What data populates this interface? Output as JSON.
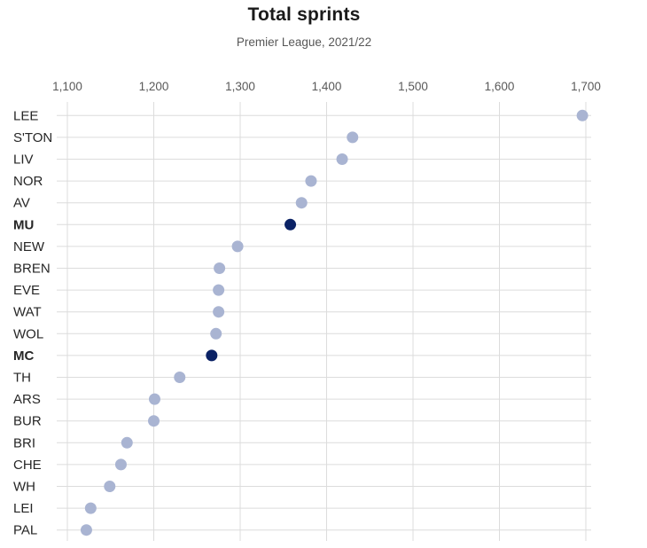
{
  "header": {
    "title": "Total sprints",
    "subtitle": "Premier League, 2021/22"
  },
  "chart_data": {
    "type": "scatter",
    "variant": "horizontal-dot-plot",
    "title": "Total sprints",
    "subtitle": "Premier League, 2021/22",
    "xlabel": "",
    "ylabel": "",
    "x_axis_position": "top",
    "grid": true,
    "legend": "none",
    "xlim": [
      1090,
      1706
    ],
    "x_ticks": [
      1100,
      1200,
      1300,
      1400,
      1500,
      1600,
      1700
    ],
    "categories": [
      "LEE",
      "S'TON",
      "LIV",
      "NOR",
      "AV",
      "MU",
      "NEW",
      "BREN",
      "EVE",
      "WAT",
      "WOL",
      "MC",
      "TH",
      "ARS",
      "BUR",
      "BRI",
      "CHE",
      "WH",
      "LEI",
      "PAL"
    ],
    "values": [
      1696,
      1430,
      1418,
      1382,
      1371,
      1358,
      1297,
      1276,
      1275,
      1275,
      1272,
      1267,
      1230,
      1201,
      1200,
      1169,
      1162,
      1149,
      1127,
      1122
    ],
    "highlighted_categories": [
      "MU",
      "MC"
    ],
    "colors": {
      "dot": "#a9b4d2",
      "dot_highlight": "#0b2265",
      "grid": "#dcdcdc",
      "tick_label": "#595959",
      "category_label": "#262626",
      "title": "#1a1a1a",
      "subtitle": "#575757",
      "background": "#ffffff"
    }
  }
}
